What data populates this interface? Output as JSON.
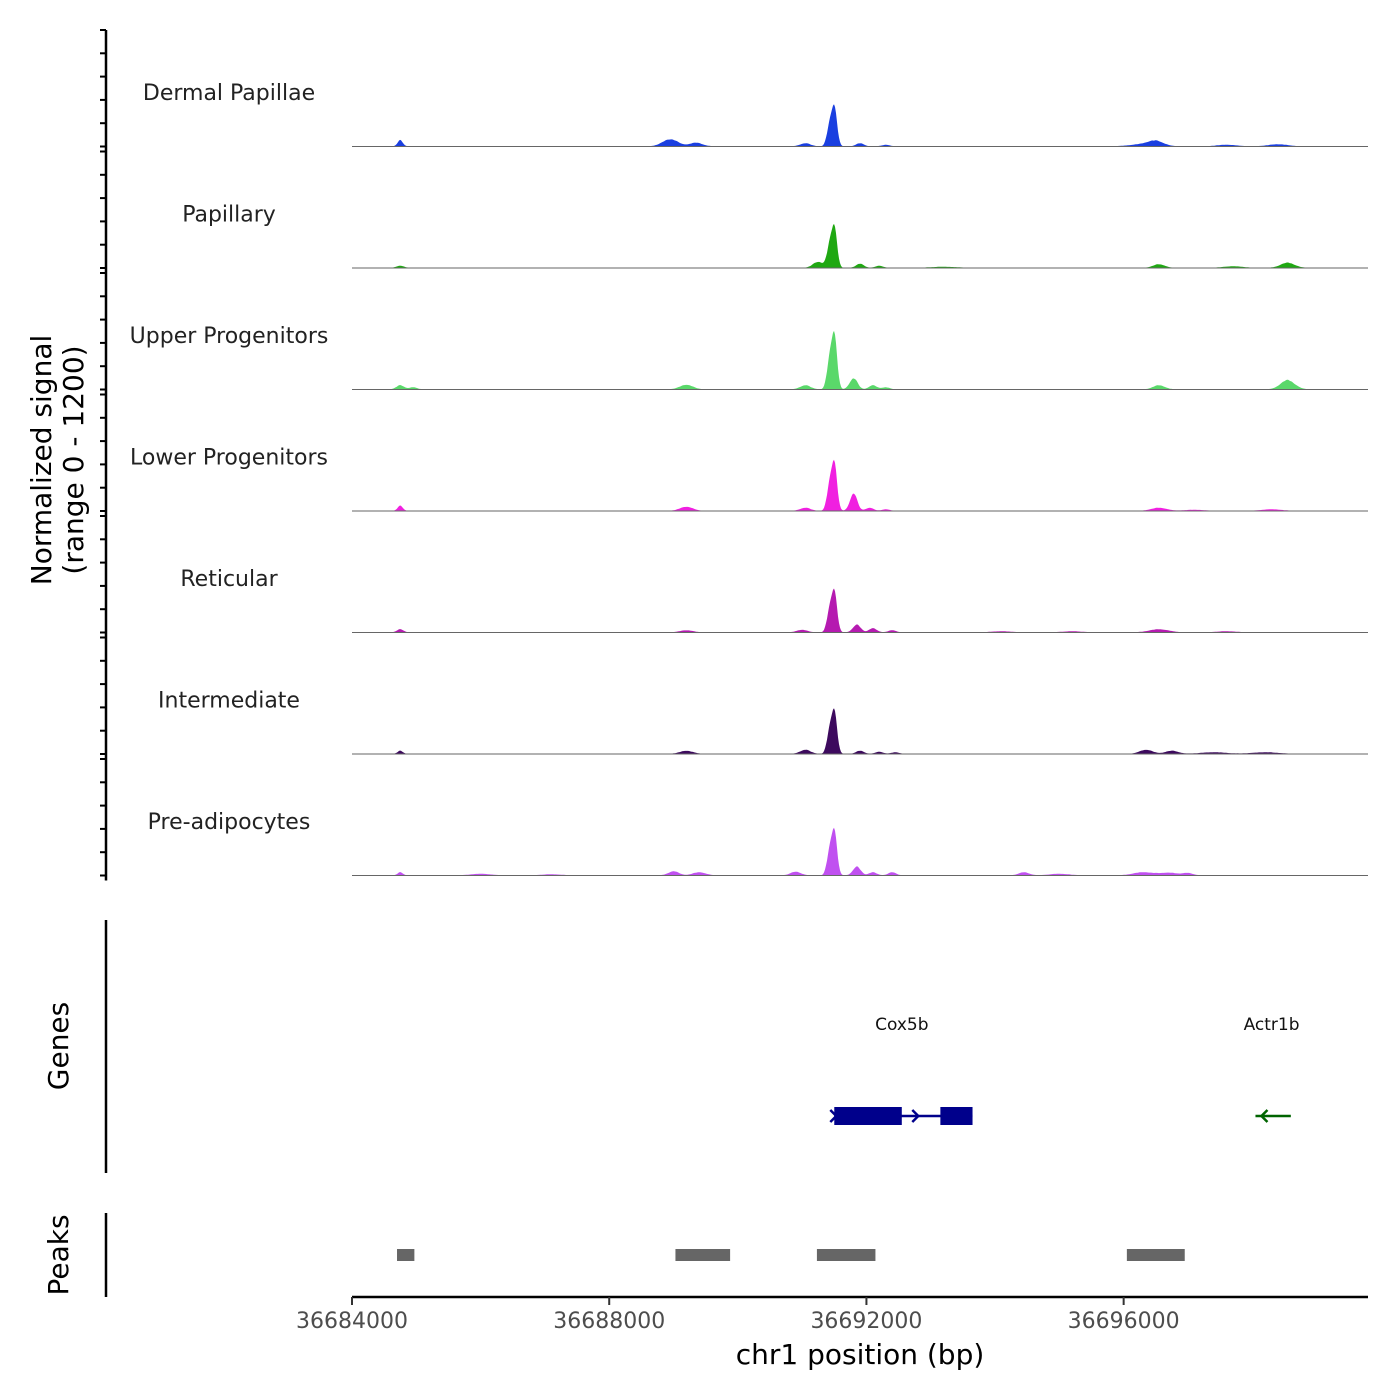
{
  "chart_data": {
    "type": "area",
    "title": "",
    "ylabel_line1": "Normalized signal",
    "ylabel_line2": "(range 0 - 1200)",
    "ylim": [
      0,
      1200
    ],
    "xlabel": "chr1 position (bp)",
    "xlim": [
      36684000,
      36699800
    ],
    "x_ticks": [
      36684000,
      36688000,
      36692000,
      36696000
    ],
    "x_tick_labels": [
      "36684000",
      "36688000",
      "36692000",
      "36696000"
    ],
    "peak_summit": 36691500,
    "tracks": [
      {
        "name": "Dermal Papillae",
        "color": "#1a3fe0",
        "summit_value": 1150,
        "bumps": [
          [
            36684750,
            120,
            40
          ],
          [
            36688950,
            140,
            120
          ],
          [
            36689350,
            70,
            100
          ],
          [
            36691050,
            60,
            80
          ],
          [
            36691900,
            60,
            60
          ],
          [
            36692300,
            30,
            60
          ],
          [
            36696300,
            40,
            200
          ],
          [
            36696500,
            90,
            120
          ],
          [
            36697600,
            30,
            150
          ],
          [
            36698400,
            40,
            150
          ]
        ]
      },
      {
        "name": "Papillary",
        "color": "#1fa812",
        "summit_value": 1200,
        "bumps": [
          [
            36684750,
            40,
            60
          ],
          [
            36691250,
            120,
            80
          ],
          [
            36691900,
            80,
            60
          ],
          [
            36692200,
            40,
            60
          ],
          [
            36693200,
            20,
            200
          ],
          [
            36696550,
            70,
            90
          ],
          [
            36697700,
            30,
            150
          ],
          [
            36698550,
            100,
            110
          ]
        ]
      },
      {
        "name": "Upper Progenitors",
        "color": "#5ad86a",
        "summit_value": 1600,
        "bumps": [
          [
            36684750,
            80,
            60
          ],
          [
            36684950,
            40,
            60
          ],
          [
            36689200,
            90,
            100
          ],
          [
            36691050,
            80,
            80
          ],
          [
            36691800,
            220,
            60
          ],
          [
            36692100,
            80,
            60
          ],
          [
            36692300,
            40,
            60
          ],
          [
            36696550,
            80,
            90
          ],
          [
            36698550,
            180,
            110
          ]
        ]
      },
      {
        "name": "Lower Progenitors",
        "color": "#f020e0",
        "summit_value": 1400,
        "bumps": [
          [
            36684750,
            100,
            40
          ],
          [
            36689200,
            80,
            100
          ],
          [
            36691050,
            60,
            80
          ],
          [
            36691800,
            350,
            55
          ],
          [
            36692050,
            60,
            60
          ],
          [
            36692300,
            30,
            60
          ],
          [
            36696550,
            60,
            120
          ],
          [
            36697100,
            20,
            150
          ],
          [
            36698300,
            30,
            150
          ]
        ]
      },
      {
        "name": "Reticular",
        "color": "#b51ab0",
        "summit_value": 1200,
        "bumps": [
          [
            36684750,
            60,
            50
          ],
          [
            36689200,
            40,
            100
          ],
          [
            36691000,
            50,
            80
          ],
          [
            36691850,
            150,
            60
          ],
          [
            36692100,
            80,
            60
          ],
          [
            36692400,
            40,
            60
          ],
          [
            36694100,
            20,
            150
          ],
          [
            36695200,
            20,
            150
          ],
          [
            36696550,
            60,
            150
          ],
          [
            36697600,
            20,
            150
          ]
        ]
      },
      {
        "name": "Intermediate",
        "color": "#3d0a5e",
        "summit_value": 1250,
        "bumps": [
          [
            36684750,
            60,
            40
          ],
          [
            36689200,
            60,
            100
          ],
          [
            36691050,
            80,
            80
          ],
          [
            36691900,
            60,
            60
          ],
          [
            36692200,
            40,
            60
          ],
          [
            36692450,
            30,
            60
          ],
          [
            36696350,
            80,
            100
          ],
          [
            36696750,
            60,
            100
          ],
          [
            36697400,
            30,
            200
          ],
          [
            36698200,
            30,
            200
          ]
        ]
      },
      {
        "name": "Pre-adipocytes",
        "color": "#c050f0",
        "summit_value": 1300,
        "bumps": [
          [
            36684750,
            60,
            40
          ],
          [
            36686000,
            30,
            150
          ],
          [
            36687100,
            20,
            150
          ],
          [
            36689000,
            80,
            80
          ],
          [
            36689400,
            60,
            100
          ],
          [
            36690900,
            70,
            80
          ],
          [
            36691850,
            170,
            60
          ],
          [
            36692100,
            60,
            60
          ],
          [
            36692400,
            60,
            60
          ],
          [
            36694450,
            60,
            80
          ],
          [
            36695000,
            30,
            150
          ],
          [
            36696300,
            60,
            150
          ],
          [
            36696700,
            50,
            150
          ],
          [
            36697000,
            40,
            80
          ]
        ]
      }
    ],
    "genes_label": "Genes",
    "genes": [
      {
        "name": "Cox5b",
        "color": "#00008b",
        "start": 36691500,
        "end": 36693650,
        "strand": "+",
        "exons": [
          [
            36691500,
            36692550
          ],
          [
            36693150,
            36693650
          ]
        ],
        "label_x": 36692550
      },
      {
        "name": "Actr1b",
        "color": "#006400",
        "start": 36698050,
        "end": 36698600,
        "strand": "-",
        "exons": [],
        "label_x": 36698300
      }
    ],
    "peaks_label": "Peaks",
    "peaks": [
      [
        36684700,
        36684970
      ],
      [
        36689030,
        36689880
      ],
      [
        36691230,
        36692140
      ],
      [
        36696050,
        36696950
      ]
    ]
  }
}
